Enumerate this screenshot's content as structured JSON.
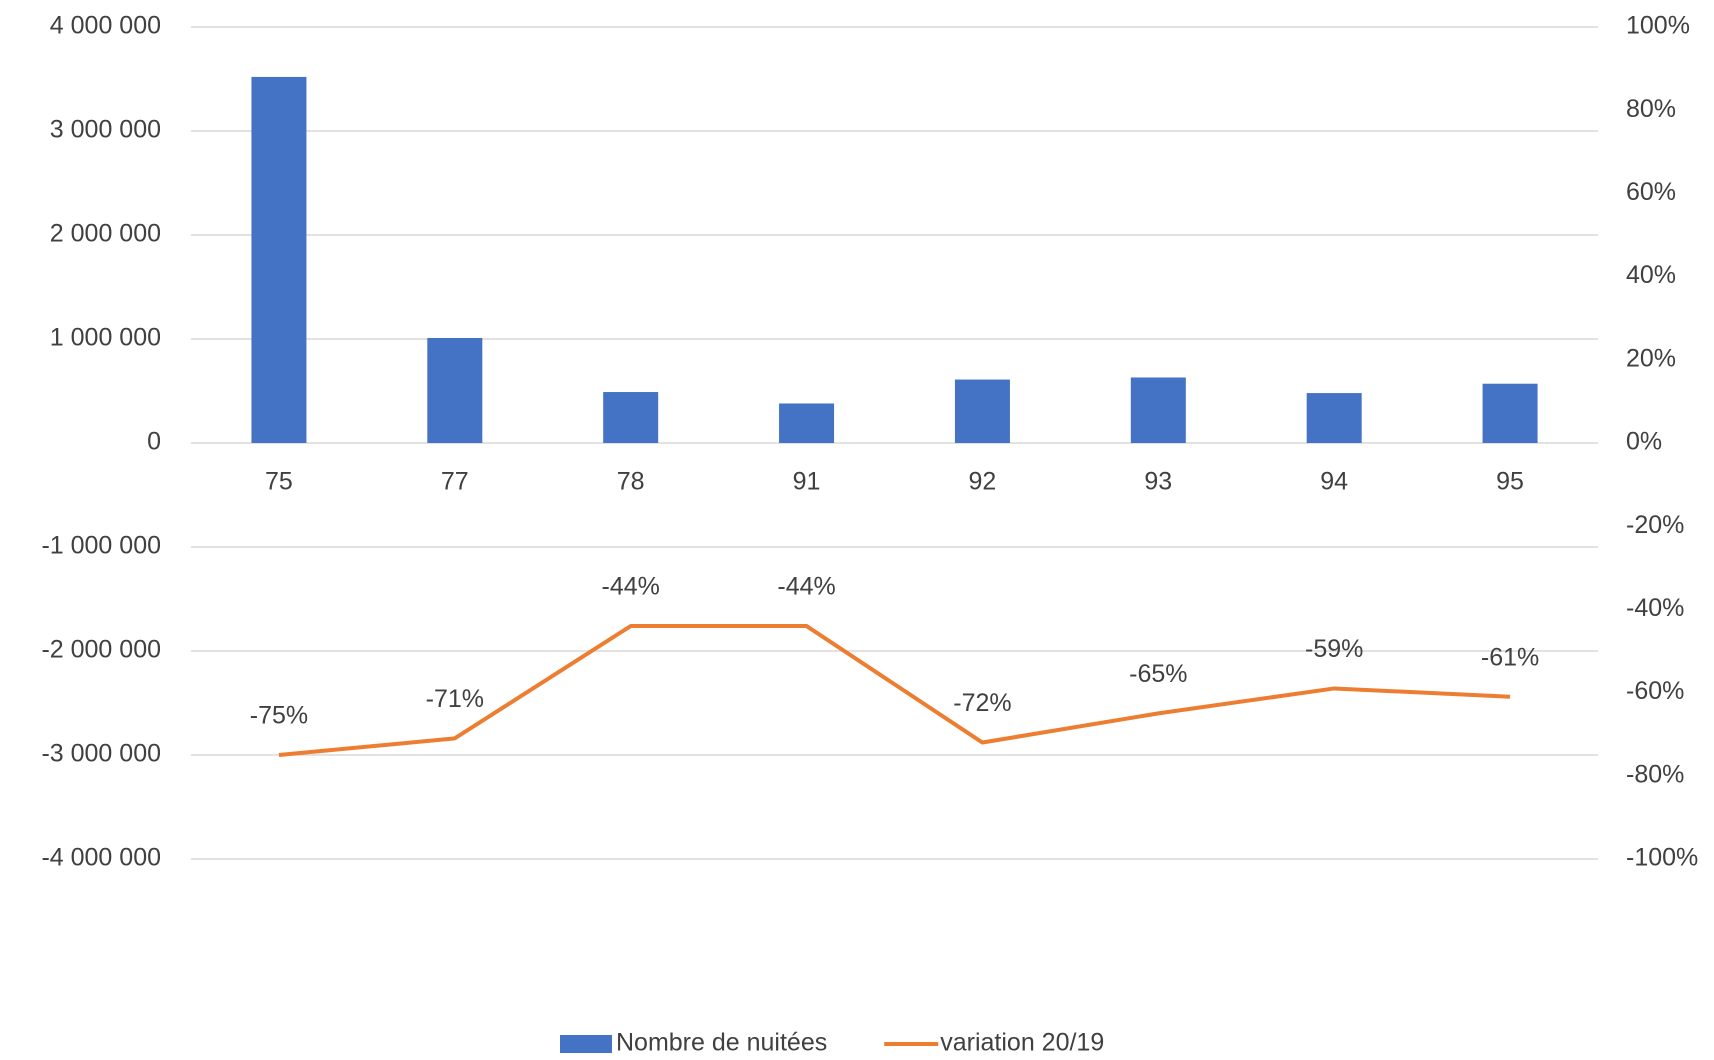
{
  "chart_data": {
    "type": "bar",
    "categories": [
      "75",
      "77",
      "78",
      "91",
      "92",
      "93",
      "94",
      "95"
    ],
    "series": [
      {
        "name": "Nombre de nuitées",
        "type": "bar",
        "color": "#4472c4",
        "values": [
          3520000,
          1010000,
          490000,
          380000,
          610000,
          630000,
          480000,
          570000
        ]
      },
      {
        "name": "variation 20/19",
        "type": "line",
        "axis": "y2",
        "color": "#ed7d31",
        "values": [
          -75,
          -71,
          -44,
          -44,
          -72,
          -65,
          -59,
          -61
        ],
        "value_labels": [
          "-75%",
          "-71%",
          "-44%",
          "-44%",
          "-72%",
          "-65%",
          "-59%",
          "-61%"
        ]
      }
    ],
    "ylim": [
      -4000000,
      4000000
    ],
    "yticks": [
      {
        "value": -4000000,
        "label": "-4 000 000"
      },
      {
        "value": -3000000,
        "label": "-3 000 000"
      },
      {
        "value": -2000000,
        "label": "-2 000 000"
      },
      {
        "value": -1000000,
        "label": "-1 000 000"
      },
      0,
      {
        "value": 1000000,
        "label": "1 000 000"
      },
      {
        "value": 2000000,
        "label": "2 000 000"
      },
      {
        "value": 3000000,
        "label": "3 000 000"
      },
      {
        "value": 4000000,
        "label": "4 000 000"
      }
    ],
    "y2lim": [
      -100,
      100
    ],
    "y2ticks": [
      {
        "value": -100,
        "label": "-100%"
      },
      {
        "value": -80,
        "label": "-80%"
      },
      {
        "value": -60,
        "label": "-60%"
      },
      {
        "value": -40,
        "label": "-40%"
      },
      {
        "value": -20,
        "label": "-20%"
      },
      {
        "value": 0,
        "label": "0%"
      },
      {
        "value": 20,
        "label": "20%"
      },
      {
        "value": 40,
        "label": "40%"
      },
      {
        "value": 60,
        "label": "60%"
      },
      {
        "value": 80,
        "label": "80%"
      },
      {
        "value": 100,
        "label": "100%"
      }
    ],
    "grid": true,
    "legend": "bottom"
  }
}
